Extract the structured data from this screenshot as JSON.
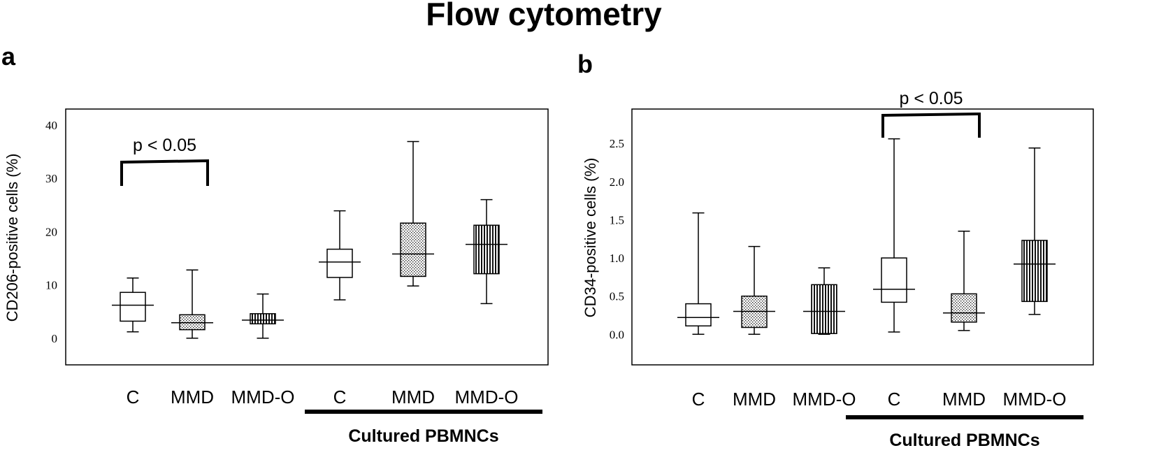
{
  "title": "Flow cytometry",
  "chart_data": [
    {
      "type": "box",
      "panel": "a",
      "ylabel": "CD206-positive cells  (%)",
      "ylim": [
        -5,
        43
      ],
      "yticks": [
        0,
        10,
        20,
        30,
        40
      ],
      "ytick_labels": [
        "0",
        "10",
        "20",
        "30",
        "40"
      ],
      "categories": [
        "C",
        "MMD",
        "MMD-O",
        "C",
        "MMD",
        "MMD-O"
      ],
      "group_label": "Cultured PBMNCs",
      "group_members": [
        3,
        4,
        5
      ],
      "significance": {
        "label": "p < 0.05",
        "between": [
          0,
          1
        ]
      },
      "boxes": [
        {
          "category": "C",
          "fill": "open",
          "min": 1.2,
          "q1": 3.2,
          "median": 6.2,
          "q3": 8.6,
          "max": 11.3
        },
        {
          "category": "MMD",
          "fill": "dots",
          "min": 0,
          "q1": 1.6,
          "median": 2.9,
          "q3": 4.4,
          "max": 12.8
        },
        {
          "category": "MMD-O",
          "fill": "vlines",
          "min": 0,
          "q1": 2.7,
          "median": 3.4,
          "q3": 4.6,
          "max": 8.3
        },
        {
          "category": "C",
          "fill": "open",
          "min": 7.2,
          "q1": 11.4,
          "median": 14.3,
          "q3": 16.7,
          "max": 23.9
        },
        {
          "category": "MMD",
          "fill": "dots",
          "min": 9.8,
          "q1": 11.6,
          "median": 15.8,
          "q3": 21.6,
          "max": 36.9
        },
        {
          "category": "MMD-O",
          "fill": "vlines",
          "min": 6.5,
          "q1": 12.1,
          "median": 17.6,
          "q3": 21.2,
          "max": 26.0
        }
      ]
    },
    {
      "type": "box",
      "panel": "b",
      "ylabel": "CD34-positive cells  (%)",
      "ylim": [
        -0.4,
        2.95
      ],
      "yticks": [
        0,
        0.5,
        1,
        1.5,
        2,
        2.5
      ],
      "ytick_labels": [
        "0.0",
        "0.5",
        "1.0",
        "1.5",
        "2.0",
        "2.5"
      ],
      "categories": [
        "C",
        "MMD",
        "MMD-O",
        "C",
        "MMD",
        "MMD-O"
      ],
      "group_label": "Cultured PBMNCs",
      "group_members": [
        3,
        4,
        5
      ],
      "significance": {
        "label": "p < 0.05",
        "between": [
          3,
          4
        ]
      },
      "boxes": [
        {
          "category": "C",
          "fill": "open",
          "min": 0,
          "q1": 0.11,
          "median": 0.22,
          "q3": 0.4,
          "max": 1.59
        },
        {
          "category": "MMD",
          "fill": "dots",
          "min": 0,
          "q1": 0.09,
          "median": 0.3,
          "q3": 0.5,
          "max": 1.15
        },
        {
          "category": "MMD-O",
          "fill": "vlines",
          "min": 0,
          "q1": 0.01,
          "median": 0.3,
          "q3": 0.65,
          "max": 0.87
        },
        {
          "category": "C",
          "fill": "open",
          "min": 0.03,
          "q1": 0.42,
          "median": 0.59,
          "q3": 1.0,
          "max": 2.56
        },
        {
          "category": "MMD",
          "fill": "dots",
          "min": 0.05,
          "q1": 0.16,
          "median": 0.28,
          "q3": 0.53,
          "max": 1.35
        },
        {
          "category": "MMD-O",
          "fill": "vlines",
          "min": 0.26,
          "q1": 0.43,
          "median": 0.92,
          "q3": 1.23,
          "max": 2.44
        }
      ]
    }
  ]
}
